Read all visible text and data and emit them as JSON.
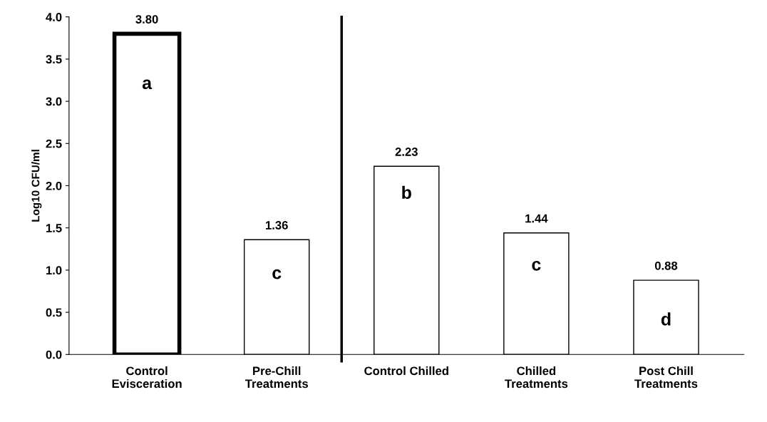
{
  "chart_data": {
    "type": "bar",
    "ylabel": "Log10 CFU/ml",
    "categories": [
      "Control\nEvisceration",
      "Pre-Chill\nTreatments",
      "Control Chilled",
      "Chilled\nTreatments",
      "Post Chill\nTreatments"
    ],
    "values": [
      3.8,
      1.36,
      2.23,
      1.44,
      0.88
    ],
    "value_labels": [
      "3.80",
      "1.36",
      "2.23",
      "1.44",
      "0.88"
    ],
    "colors": [
      "#ffffff",
      "#ffffff",
      "#ffffff",
      "#ffffff",
      "#ffffff"
    ],
    "ylim": [
      0,
      4
    ],
    "yticks": [
      {
        "value": 0,
        "label": "0.0"
      },
      {
        "value": 0.5,
        "label": "0.5"
      },
      {
        "value": 1,
        "label": "1.0"
      },
      {
        "value": 1.5,
        "label": "1.5"
      },
      {
        "value": 2,
        "label": "2.0"
      },
      {
        "value": 2.5,
        "label": "2.5"
      },
      {
        "value": 3,
        "label": "3.0"
      },
      {
        "value": 3.5,
        "label": "3.5"
      },
      {
        "value": 4,
        "label": "4.0"
      }
    ],
    "annotations": [
      {
        "text": "a",
        "x": "Control\nEvisceration",
        "y": 3.2
      },
      {
        "text": "c",
        "x": "Pre-Chill\nTreatments",
        "y": 0.95
      },
      {
        "text": "b",
        "x": "Control Chilled",
        "y": 1.9
      },
      {
        "text": "c",
        "x": "Chilled\nTreatments",
        "y": 1.05
      },
      {
        "text": "d",
        "x": "Post Chill\nTreatments",
        "y": 0.4
      }
    ],
    "grid": false,
    "legend": false
  }
}
